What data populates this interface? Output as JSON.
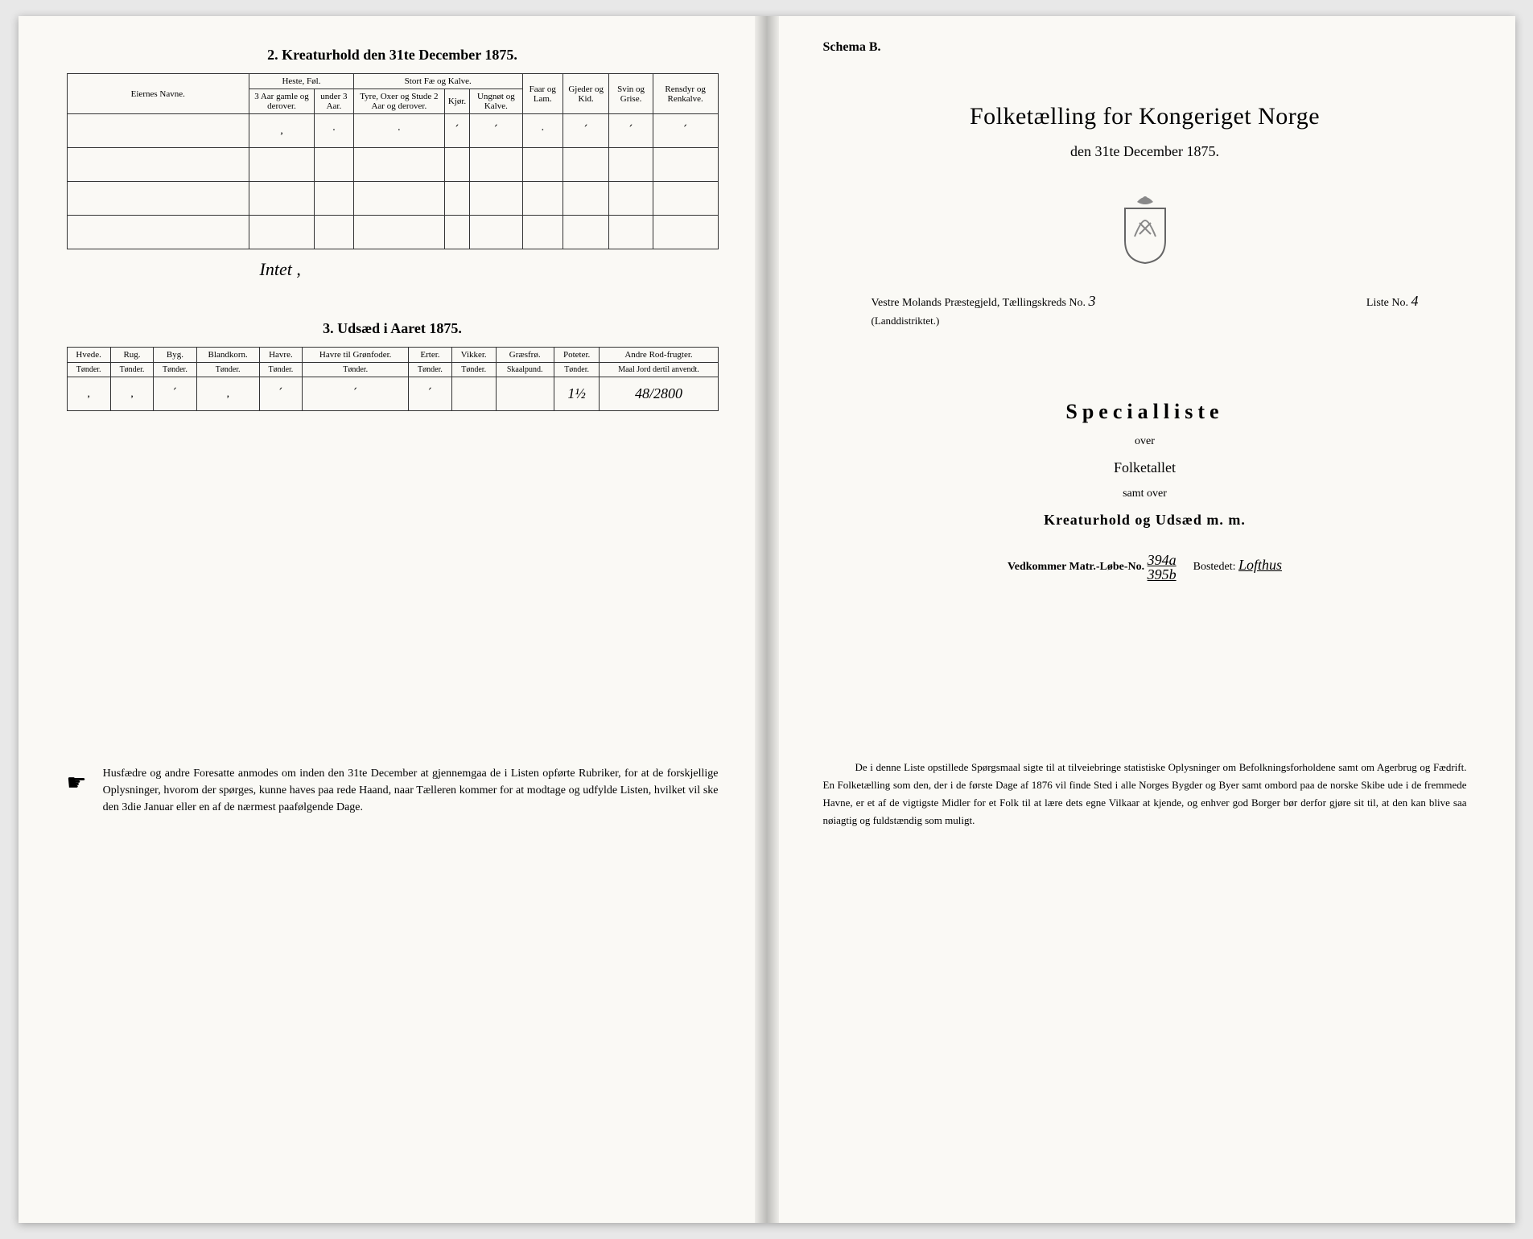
{
  "left": {
    "section2_title": "2.  Kreaturhold den 31te December 1875.",
    "table2": {
      "col_eier": "Eiernes Navne.",
      "grp_heste": "Heste, Føl.",
      "grp_stort": "Stort Fæ og Kalve.",
      "col_faar": "Faar og Lam.",
      "col_gjeder": "Gjeder og Kid.",
      "col_svin": "Svin og Grise.",
      "col_rensdyr": "Rensdyr og Renkalve.",
      "sub_heste1": "3 Aar gamle og derover.",
      "sub_heste2": "under 3 Aar.",
      "sub_stort1": "Tyre, Oxer og Stude 2 Aar og derover.",
      "sub_stort2": "Kjør.",
      "sub_stort3": "Ungnøt og Kalve.",
      "row_ticks": [
        "‚",
        "·",
        "·",
        "՛",
        "՛",
        "·",
        "՛",
        "՛",
        "՛",
        "՛"
      ]
    },
    "handwritten_below_t2": "Intet  ,",
    "section3_title": "3.  Udsæd i Aaret 1875.",
    "table3": {
      "cols": [
        {
          "h": "Hvede.",
          "s": "Tønder."
        },
        {
          "h": "Rug.",
          "s": "Tønder."
        },
        {
          "h": "Byg.",
          "s": "Tønder."
        },
        {
          "h": "Blandkorn.",
          "s": "Tønder."
        },
        {
          "h": "Havre.",
          "s": "Tønder."
        },
        {
          "h": "Havre til Grønfoder.",
          "s": "Tønder."
        },
        {
          "h": "Erter.",
          "s": "Tønder."
        },
        {
          "h": "Vikker.",
          "s": "Tønder."
        },
        {
          "h": "Græsfrø.",
          "s": "Skaalpund."
        },
        {
          "h": "Poteter.",
          "s": "Tønder."
        },
        {
          "h": "Andre Rod-frugter.",
          "s": "Maal Jord dertil anvendt."
        }
      ],
      "row": [
        "‚",
        "‚",
        "՛",
        "‚",
        "՛",
        "՛",
        "՛",
        "",
        "",
        "1½",
        "48/2800"
      ]
    },
    "footnote_icon": "☛",
    "footnote": "Husfædre og andre Foresatte anmodes om inden den 31te December at gjennemgaa de i Listen opførte Rubriker, for at de forskjellige Oplysninger, hvorom der spørges, kunne haves paa rede Haand, naar Tælleren kommer for at modtage og udfylde Listen, hvilket vil ske den 3die Januar eller en af de nærmest paafølgende Dage."
  },
  "right": {
    "schema": "Schema B.",
    "title": "Folketælling for Kongeriget Norge",
    "date": "den 31te December 1875.",
    "gjeld_prefix": "Vestre Molands  Præstegjeld,  Tællingskreds No.",
    "kreds_no": "3",
    "liste_prefix": "Liste No.",
    "liste_no": "4",
    "landd": "(Landdistriktet.)",
    "specialliste": "Specialliste",
    "over": "over",
    "folketallet": "Folketallet",
    "samt_over": "samt over",
    "kreatur": "Kreaturhold og Udsæd m. m.",
    "matr_label": "Vedkommer Matr.-Løbe-No.",
    "matr_val": "394a\n395b",
    "bostedet_label": "Bostedet:",
    "bostedet_val": "Lofthus",
    "footnote": "De i denne Liste opstillede Spørgsmaal sigte til at tilveiebringe statistiske Oplysninger om Befolkningsforholdene samt om Agerbrug og Fædrift.  En Folketælling som den, der i de første Dage af 1876 vil finde Sted i alle Norges Bygder og Byer samt ombord paa de norske Skibe ude i de fremmede Havne, er et af de vigtigste Midler for et Folk til at lære dets egne Vilkaar at kjende, og enhver god Borger bør derfor gjøre sit til, at den kan blive saa nøiagtig og fuldstændig som muligt."
  }
}
